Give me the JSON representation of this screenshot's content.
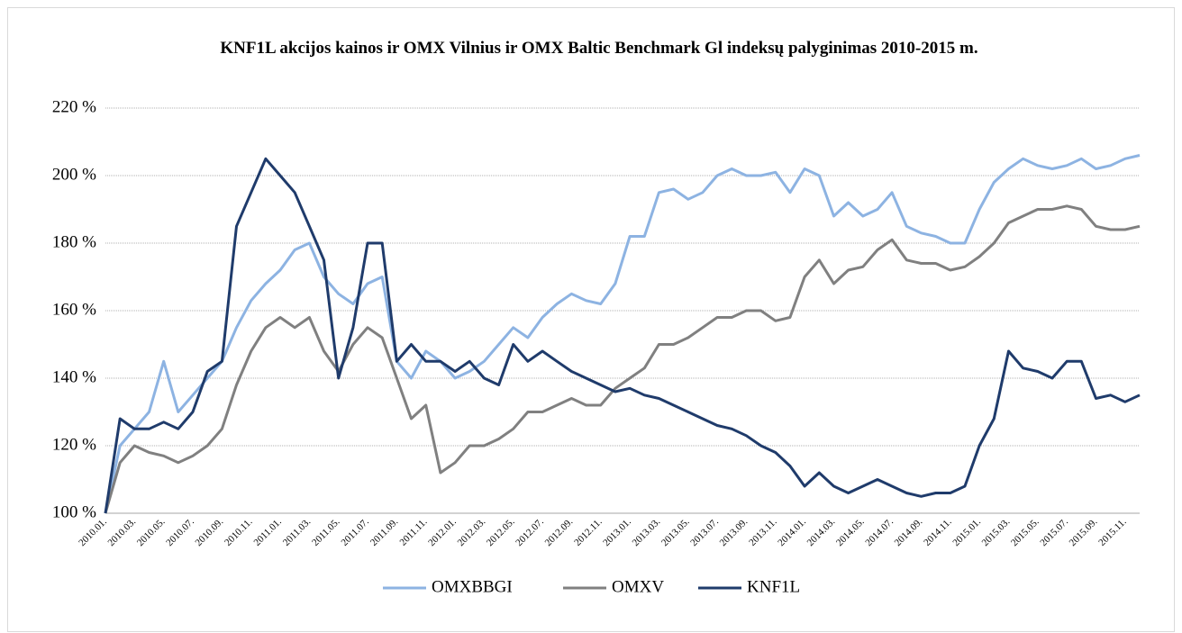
{
  "chart_data": {
    "type": "line",
    "title": "KNF1L akcijos kainos ir OMX Vilnius ir OMX Baltic Benchmark Gl indeksų palyginimas 2010-2015 m.",
    "categories": [
      "2010.01.",
      null,
      "2010.03.",
      null,
      "2010.05.",
      null,
      "2010.07.",
      null,
      "2010.09.",
      null,
      "2010.11.",
      null,
      "2011.01.",
      null,
      "2011.03.",
      null,
      "2011.05.",
      null,
      "2011.07.",
      null,
      "2011.09.",
      null,
      "2011.11.",
      null,
      "2012.01.",
      null,
      "2012.03.",
      null,
      "2012.05.",
      null,
      "2012.07.",
      null,
      "2012.09.",
      null,
      "2012.11.",
      null,
      "2013.01.",
      null,
      "2013.03.",
      null,
      "2013.05.",
      null,
      "2013.07.",
      null,
      "2013.09.",
      null,
      "2013.11.",
      null,
      "2014.01.",
      null,
      "2014.03.",
      null,
      "2014.05.",
      null,
      "2014.07.",
      null,
      "2014.09.",
      null,
      "2014.11.",
      null,
      "2015.01.",
      null,
      "2015.03.",
      null,
      "2015.05.",
      null,
      "2015.07.",
      null,
      "2015.09.",
      null,
      "2015.11.",
      null
    ],
    "series": [
      {
        "name": "OMXBBGI",
        "color": "#8db3e2",
        "values": [
          100,
          120,
          125,
          130,
          145,
          130,
          135,
          140,
          145,
          155,
          163,
          168,
          172,
          178,
          180,
          170,
          165,
          162,
          168,
          170,
          145,
          140,
          148,
          145,
          140,
          142,
          145,
          150,
          155,
          152,
          158,
          162,
          165,
          163,
          162,
          168,
          182,
          182,
          195,
          196,
          193,
          195,
          200,
          202,
          200,
          200,
          201,
          195,
          202,
          200,
          188,
          192,
          188,
          190,
          195,
          185,
          183,
          182,
          180,
          180,
          190,
          198,
          202,
          205,
          203,
          202,
          203,
          205,
          202,
          203,
          205,
          206
        ]
      },
      {
        "name": "OMXV",
        "color": "#808080",
        "values": [
          100,
          115,
          120,
          118,
          117,
          115,
          117,
          120,
          125,
          138,
          148,
          155,
          158,
          155,
          158,
          148,
          142,
          150,
          155,
          152,
          140,
          128,
          132,
          112,
          115,
          120,
          120,
          122,
          125,
          130,
          130,
          132,
          134,
          132,
          132,
          137,
          140,
          143,
          150,
          150,
          152,
          155,
          158,
          158,
          160,
          160,
          157,
          158,
          170,
          175,
          168,
          172,
          173,
          178,
          181,
          175,
          174,
          174,
          172,
          173,
          176,
          180,
          186,
          188,
          190,
          190,
          191,
          190,
          185,
          184,
          184,
          185
        ]
      },
      {
        "name": "KNF1L",
        "color": "#1f3b6b",
        "values": [
          100,
          128,
          125,
          125,
          127,
          125,
          130,
          142,
          145,
          185,
          195,
          205,
          200,
          195,
          185,
          175,
          140,
          155,
          180,
          180,
          145,
          150,
          145,
          145,
          142,
          145,
          140,
          138,
          150,
          145,
          148,
          145,
          142,
          140,
          138,
          136,
          137,
          135,
          134,
          132,
          130,
          128,
          126,
          125,
          123,
          120,
          118,
          114,
          108,
          112,
          108,
          106,
          108,
          110,
          108,
          106,
          105,
          106,
          106,
          108,
          120,
          128,
          148,
          143,
          142,
          140,
          145,
          145,
          134,
          135,
          133,
          135
        ]
      }
    ],
    "ylim": [
      100,
      220
    ],
    "yticks": [
      {
        "value": 100,
        "label": "100 %"
      },
      {
        "value": 120,
        "label": "120 %"
      },
      {
        "value": 140,
        "label": "140 %"
      },
      {
        "value": 160,
        "label": "160 %"
      },
      {
        "value": 180,
        "label": "180 %"
      },
      {
        "value": 200,
        "label": "200 %"
      },
      {
        "value": 220,
        "label": "220 %"
      }
    ],
    "grid": true,
    "legend": "bottom"
  }
}
